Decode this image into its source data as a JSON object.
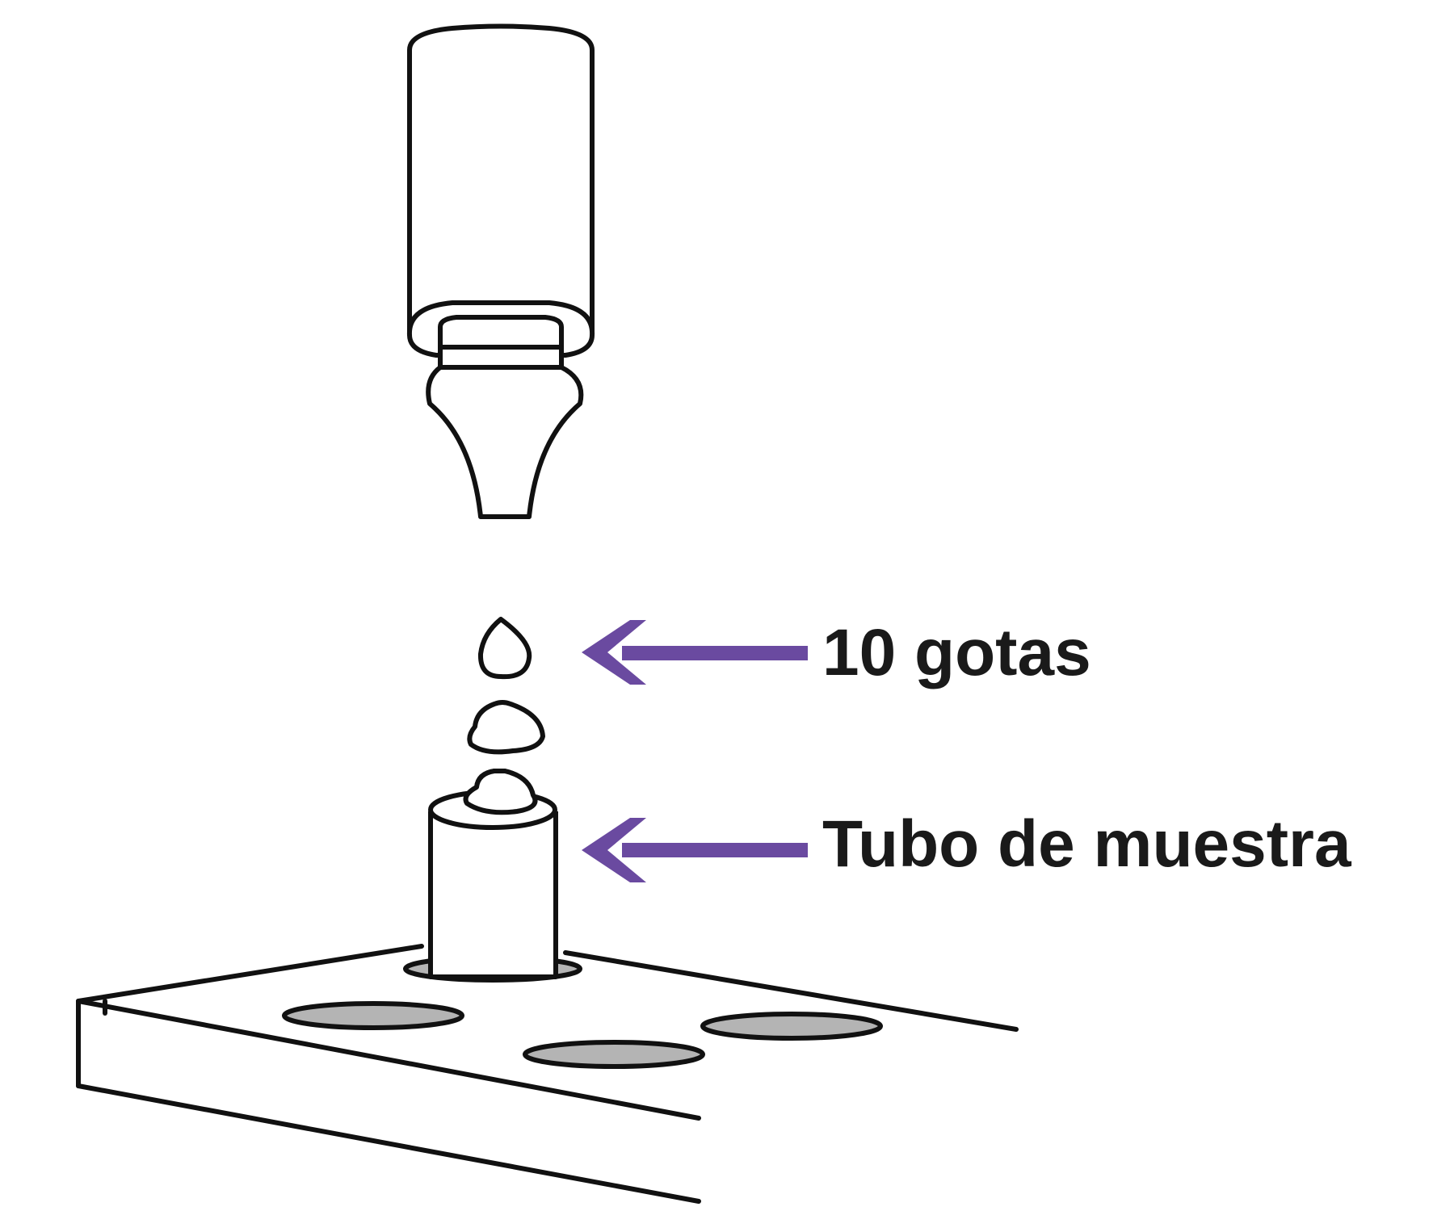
{
  "labels": {
    "drops": "10 gotas",
    "tube": "Tubo de muestra"
  },
  "colors": {
    "stroke": "#111111",
    "arrow": "#6a4aa0",
    "hole_fill": "#b4b4b4",
    "background": "#ffffff"
  }
}
